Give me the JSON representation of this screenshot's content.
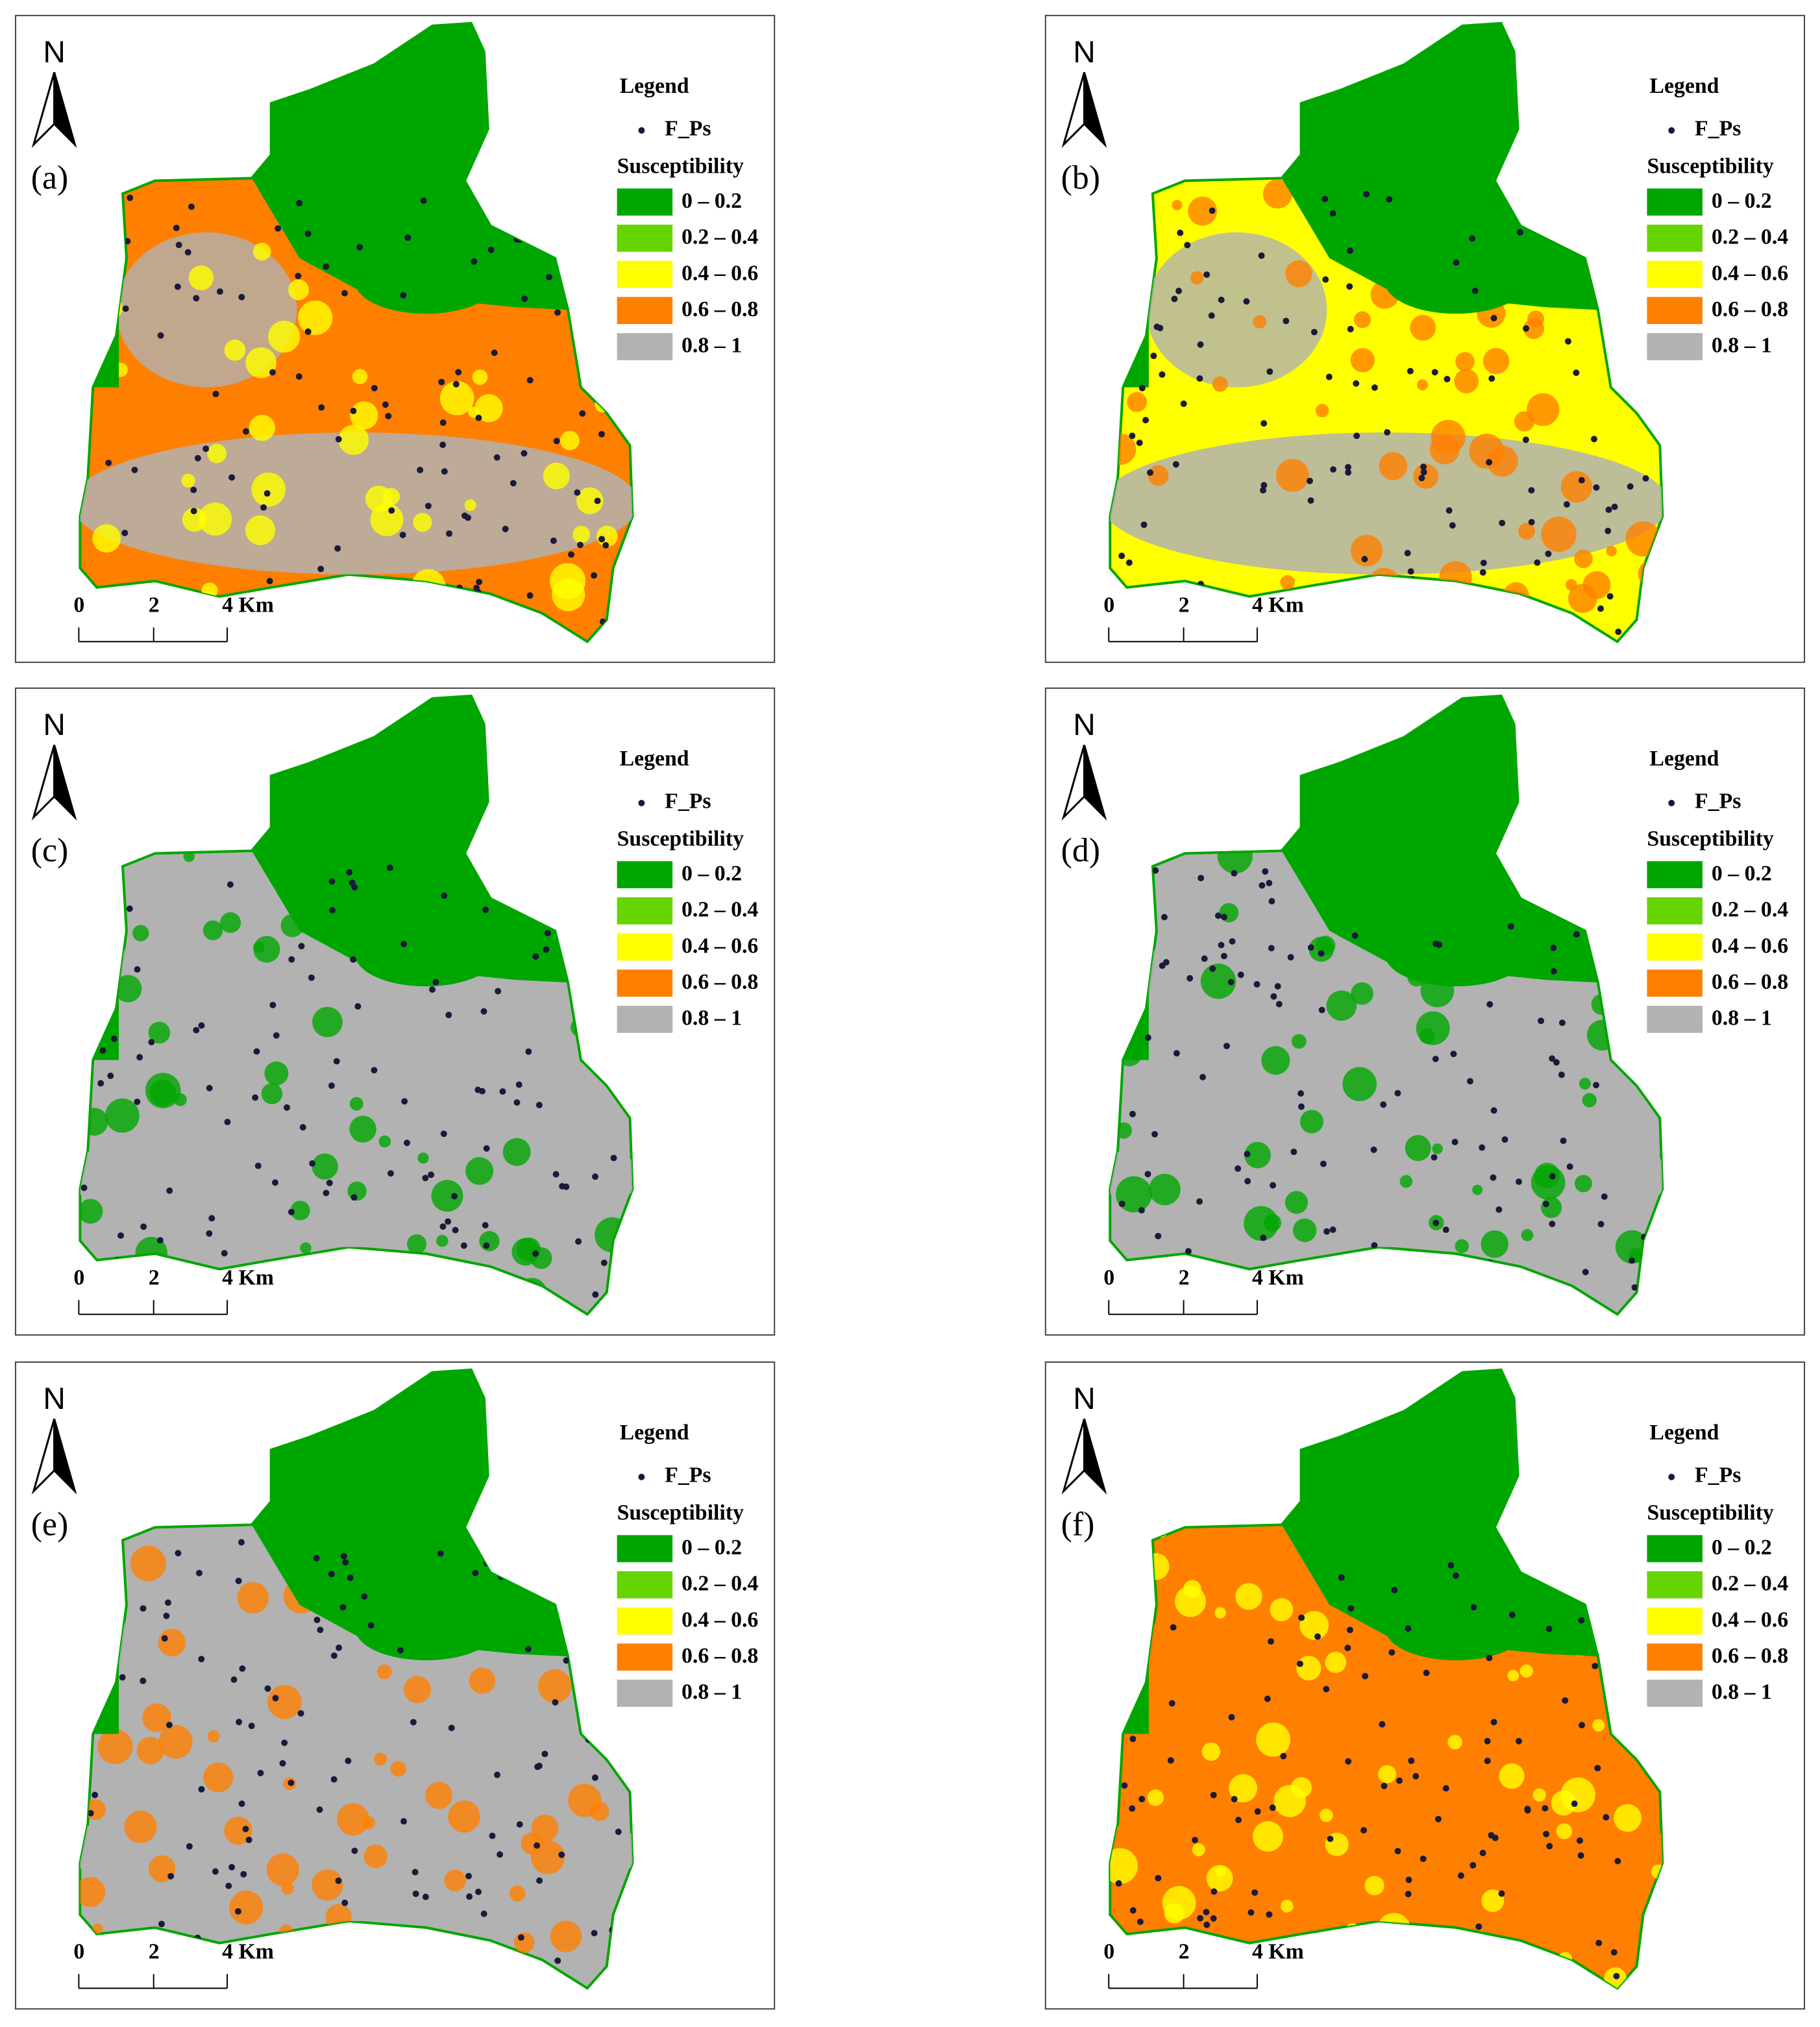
{
  "panels": [
    {
      "label": "(a)"
    },
    {
      "label": "(b)"
    },
    {
      "label": "(c)"
    },
    {
      "label": "(d)"
    },
    {
      "label": "(e)"
    },
    {
      "label": "(f)"
    }
  ],
  "north": "N",
  "legend": {
    "title": "Legend",
    "point_label": "F_Ps",
    "classes_title": "Susceptibility",
    "classes": [
      {
        "label": "0 – 0.2",
        "color": "#00a600"
      },
      {
        "label": "0.2 – 0.4",
        "color": "#66d400"
      },
      {
        "label": "0.4 – 0.6",
        "color": "#ffff00"
      },
      {
        "label": "0.6 – 0.8",
        "color": "#ff7f00"
      },
      {
        "label": "0.8 – 1",
        "color": "#b2b2b2"
      }
    ]
  },
  "scale_bar": [
    "0",
    "2",
    "4 Km"
  ]
}
